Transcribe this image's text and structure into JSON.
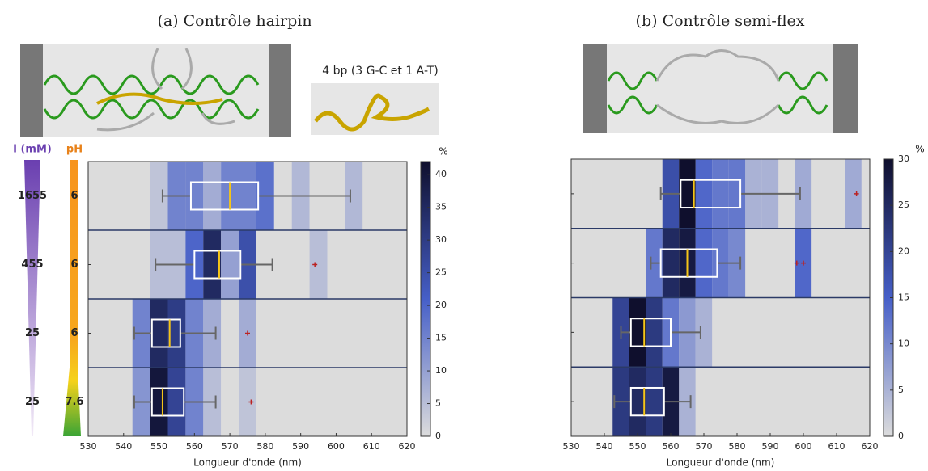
{
  "chart_data": [
    {
      "type": "box",
      "title": "(a) Contrôle hairpin",
      "annotation": "4 bp (3 G-C et 1 A-T)",
      "xlabel": "Longueur d'onde (nm)",
      "xlim": [
        530,
        620
      ],
      "xticks": [
        530,
        540,
        550,
        560,
        570,
        580,
        590,
        600,
        610,
        620
      ],
      "bins": [
        532.5,
        537.5,
        542.5,
        547.5,
        552.5,
        557.5,
        562.5,
        567.5,
        572.5,
        577.5,
        582.5,
        587.5,
        592.5,
        597.5,
        602.5,
        607.5,
        612.5,
        617.5
      ],
      "row_headers": [
        "I (mM)",
        "pH"
      ],
      "rows": [
        {
          "labels": [
            "1655",
            "6"
          ],
          "heat": [
            0,
            0,
            0,
            4,
            15,
            15,
            8,
            15,
            15,
            18,
            0,
            6,
            0,
            0,
            6,
            0,
            0
          ],
          "box": [
            551,
            559,
            570,
            578,
            604
          ],
          "outliers": []
        },
        {
          "labels": [
            "455",
            "6"
          ],
          "heat": [
            0,
            0,
            0,
            5,
            5,
            20,
            35,
            10,
            25,
            0,
            0,
            0,
            5,
            0,
            0,
            0,
            0
          ],
          "box": [
            549,
            560,
            567,
            573,
            582
          ],
          "outliers": [
            594
          ]
        },
        {
          "labels": [
            "25",
            "6"
          ],
          "heat": [
            0,
            0,
            15,
            35,
            30,
            15,
            8,
            0,
            8,
            0,
            0,
            0,
            0,
            0,
            0,
            0,
            0
          ],
          "box": [
            543,
            548,
            553,
            556,
            566
          ],
          "outliers": [
            575
          ]
        },
        {
          "labels": [
            "25",
            "7.6"
          ],
          "heat": [
            0,
            0,
            12,
            40,
            28,
            15,
            5,
            0,
            4,
            0,
            0,
            0,
            0,
            0,
            0,
            0,
            0
          ],
          "box": [
            543,
            548,
            551,
            557,
            566
          ],
          "outliers": [
            576
          ]
        }
      ],
      "colorbar": {
        "label": "%",
        "lim": [
          0,
          42
        ],
        "ticks": [
          0,
          5,
          10,
          15,
          20,
          25,
          30,
          35,
          40
        ]
      }
    },
    {
      "type": "box",
      "title": "(b) Contrôle semi-flex",
      "xlabel": "Longueur d'onde (nm)",
      "xlim": [
        530,
        620
      ],
      "xticks": [
        530,
        540,
        550,
        560,
        570,
        580,
        590,
        600,
        610,
        620
      ],
      "bins": [
        532.5,
        537.5,
        542.5,
        547.5,
        552.5,
        557.5,
        562.5,
        567.5,
        572.5,
        577.5,
        582.5,
        587.5,
        592.5,
        597.5,
        602.5,
        607.5,
        612.5,
        617.5
      ],
      "rows": [
        {
          "heat": [
            0,
            0,
            0,
            0,
            0,
            18,
            30,
            14,
            12,
            12,
            5,
            5,
            0,
            6,
            0,
            0,
            6
          ],
          "box": [
            557,
            563,
            567,
            581,
            599
          ],
          "outliers": [
            616
          ]
        },
        {
          "heat": [
            0,
            0,
            0,
            0,
            12,
            25,
            28,
            14,
            12,
            10,
            0,
            0,
            0,
            14,
            0,
            0,
            0
          ],
          "box": [
            554,
            557,
            565,
            574,
            581
          ],
          "outliers": [
            598,
            600
          ]
        },
        {
          "heat": [
            0,
            0,
            20,
            30,
            22,
            12,
            8,
            5,
            0,
            0,
            0,
            0,
            0,
            0,
            0,
            0,
            0
          ],
          "box": [
            545,
            548,
            552,
            560,
            569
          ],
          "outliers": []
        },
        {
          "heat": [
            0,
            0,
            22,
            25,
            22,
            28,
            5,
            0,
            0,
            0,
            0,
            0,
            0,
            0,
            0,
            0,
            0
          ],
          "box": [
            543,
            548,
            552,
            558,
            566
          ],
          "outliers": []
        }
      ],
      "colorbar": {
        "label": "%",
        "lim": [
          0,
          30
        ],
        "ticks": [
          0,
          5,
          10,
          15,
          20,
          25,
          30
        ]
      }
    }
  ]
}
